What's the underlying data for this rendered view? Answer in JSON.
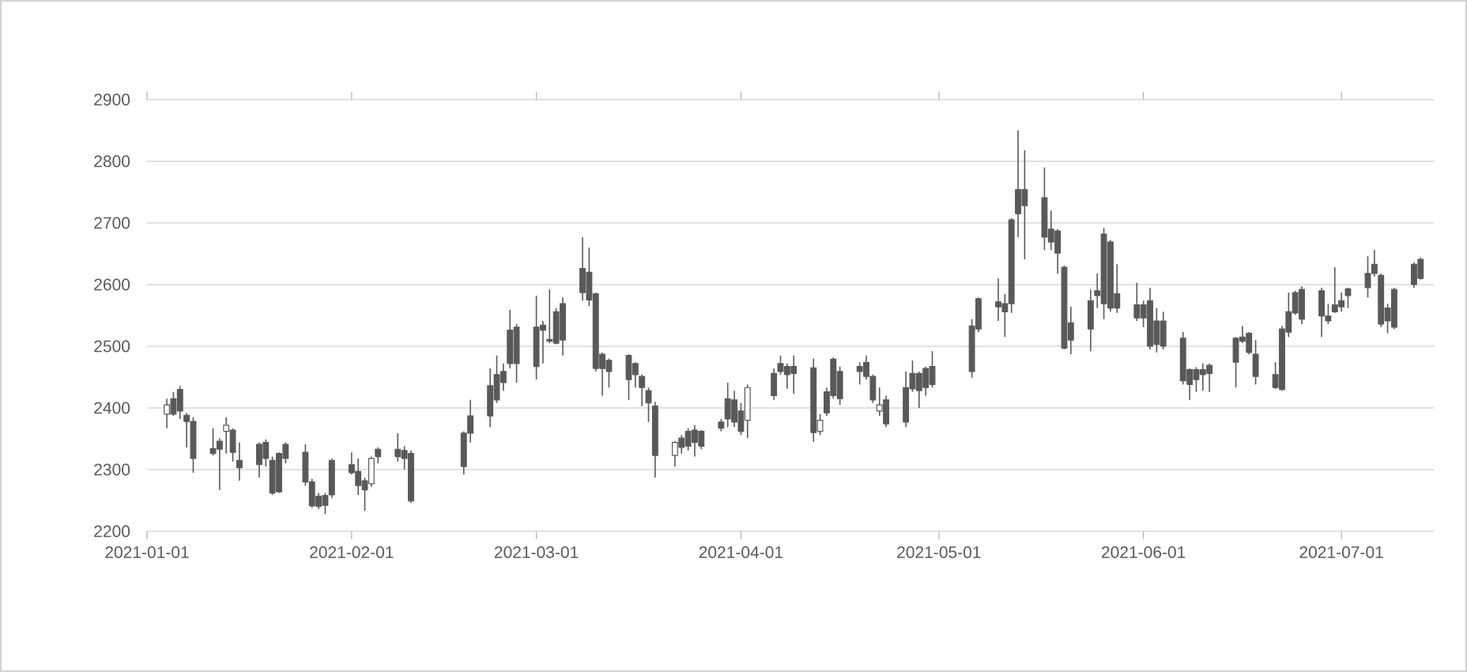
{
  "chart_data": {
    "type": "candlestick",
    "color": "#595959",
    "xlim": [
      "2021-01-01",
      "2021-07-15"
    ],
    "xticks": [
      "2021-01-01",
      "2021-02-01",
      "2021-03-01",
      "2021-04-01",
      "2021-05-01",
      "2021-06-01",
      "2021-07-01"
    ],
    "ylim": [
      2200,
      2900
    ],
    "yticks": [
      2200,
      2300,
      2400,
      2500,
      2600,
      2700,
      2800,
      2900
    ],
    "grid": "y",
    "x": [
      "2021-01-04",
      "2021-01-05",
      "2021-01-06",
      "2021-01-07",
      "2021-01-08",
      "2021-01-11",
      "2021-01-12",
      "2021-01-13",
      "2021-01-14",
      "2021-01-15",
      "2021-01-18",
      "2021-01-19",
      "2021-01-20",
      "2021-01-21",
      "2021-01-22",
      "2021-01-25",
      "2021-01-26",
      "2021-01-27",
      "2021-01-28",
      "2021-01-29",
      "2021-02-01",
      "2021-02-02",
      "2021-02-03",
      "2021-02-04",
      "2021-02-05",
      "2021-02-08",
      "2021-02-09",
      "2021-02-10",
      "2021-02-18",
      "2021-02-19",
      "2021-02-22",
      "2021-02-23",
      "2021-02-24",
      "2021-02-25",
      "2021-02-26",
      "2021-03-01",
      "2021-03-02",
      "2021-03-03",
      "2021-03-04",
      "2021-03-05",
      "2021-03-08",
      "2021-03-09",
      "2021-03-10",
      "2021-03-11",
      "2021-03-12",
      "2021-03-15",
      "2021-03-16",
      "2021-03-17",
      "2021-03-18",
      "2021-03-19",
      "2021-03-22",
      "2021-03-23",
      "2021-03-24",
      "2021-03-25",
      "2021-03-26",
      "2021-03-29",
      "2021-03-30",
      "2021-03-31",
      "2021-04-01",
      "2021-04-02",
      "2021-04-06",
      "2021-04-07",
      "2021-04-08",
      "2021-04-09",
      "2021-04-12",
      "2021-04-13",
      "2021-04-14",
      "2021-04-15",
      "2021-04-16",
      "2021-04-19",
      "2021-04-20",
      "2021-04-21",
      "2021-04-22",
      "2021-04-23",
      "2021-04-26",
      "2021-04-27",
      "2021-04-28",
      "2021-04-29",
      "2021-04-30",
      "2021-05-06",
      "2021-05-07",
      "2021-05-10",
      "2021-05-11",
      "2021-05-12",
      "2021-05-13",
      "2021-05-14",
      "2021-05-17",
      "2021-05-18",
      "2021-05-19",
      "2021-05-20",
      "2021-05-21",
      "2021-05-24",
      "2021-05-25",
      "2021-05-26",
      "2021-05-27",
      "2021-05-28",
      "2021-05-31",
      "2021-06-01",
      "2021-06-02",
      "2021-06-03",
      "2021-06-04",
      "2021-06-07",
      "2021-06-08",
      "2021-06-09",
      "2021-06-10",
      "2021-06-11",
      "2021-06-15",
      "2021-06-16",
      "2021-06-17",
      "2021-06-18",
      "2021-06-21",
      "2021-06-22",
      "2021-06-23",
      "2021-06-24",
      "2021-06-25",
      "2021-06-28",
      "2021-06-29",
      "2021-06-30",
      "2021-07-01",
      "2021-07-02",
      "2021-07-05",
      "2021-07-06",
      "2021-07-07",
      "2021-07-08",
      "2021-07-09",
      "2021-07-12",
      "2021-07-13"
    ],
    "ohlc": [
      [
        2390,
        2415,
        2367,
        2405
      ],
      [
        2415,
        2426,
        2387,
        2390
      ],
      [
        2430,
        2436,
        2382,
        2395
      ],
      [
        2388,
        2392,
        2336,
        2378
      ],
      [
        2378,
        2385,
        2295,
        2318
      ],
      [
        2334,
        2367,
        2323,
        2326
      ],
      [
        2346,
        2351,
        2267,
        2333
      ],
      [
        2362,
        2385,
        2326,
        2372
      ],
      [
        2364,
        2367,
        2313,
        2328
      ],
      [
        2315,
        2344,
        2282,
        2303
      ],
      [
        2341,
        2344,
        2287,
        2308
      ],
      [
        2344,
        2349,
        2305,
        2318
      ],
      [
        2315,
        2321,
        2259,
        2262
      ],
      [
        2326,
        2328,
        2262,
        2264
      ],
      [
        2341,
        2344,
        2310,
        2318
      ],
      [
        2328,
        2341,
        2274,
        2280
      ],
      [
        2280,
        2285,
        2238,
        2241
      ],
      [
        2257,
        2262,
        2236,
        2240
      ],
      [
        2258,
        2262,
        2228,
        2242
      ],
      [
        2315,
        2318,
        2254,
        2259
      ],
      [
        2308,
        2328,
        2292,
        2295
      ],
      [
        2297,
        2318,
        2259,
        2274
      ],
      [
        2282,
        2287,
        2233,
        2267
      ],
      [
        2277,
        2321,
        2272,
        2318
      ],
      [
        2333,
        2336,
        2310,
        2321
      ],
      [
        2333,
        2359,
        2313,
        2321
      ],
      [
        2331,
        2338,
        2300,
        2318
      ],
      [
        2326,
        2331,
        2246,
        2249
      ],
      [
        2359,
        2362,
        2292,
        2305
      ],
      [
        2387,
        2413,
        2344,
        2359
      ],
      [
        2436,
        2464,
        2369,
        2387
      ],
      [
        2454,
        2485,
        2408,
        2413
      ],
      [
        2459,
        2472,
        2428,
        2441
      ],
      [
        2526,
        2559,
        2464,
        2472
      ],
      [
        2531,
        2536,
        2441,
        2472
      ],
      [
        2531,
        2582,
        2446,
        2467
      ],
      [
        2534,
        2541,
        2472,
        2526
      ],
      [
        2511,
        2592,
        2505,
        2508
      ],
      [
        2556,
        2562,
        2503,
        2505
      ],
      [
        2569,
        2579,
        2485,
        2510
      ],
      [
        2626,
        2677,
        2574,
        2587
      ],
      [
        2620,
        2660,
        2565,
        2575
      ],
      [
        2585,
        2587,
        2459,
        2464
      ],
      [
        2487,
        2490,
        2420,
        2464
      ],
      [
        2477,
        2480,
        2433,
        2459
      ],
      [
        2485,
        2487,
        2413,
        2446
      ],
      [
        2472,
        2474,
        2433,
        2454
      ],
      [
        2451,
        2454,
        2403,
        2433
      ],
      [
        2428,
        2433,
        2377,
        2408
      ],
      [
        2403,
        2410,
        2287,
        2323
      ],
      [
        2323,
        2346,
        2305,
        2344
      ],
      [
        2351,
        2356,
        2326,
        2336
      ],
      [
        2362,
        2367,
        2331,
        2338
      ],
      [
        2364,
        2372,
        2321,
        2344
      ],
      [
        2362,
        2364,
        2333,
        2338
      ],
      [
        2377,
        2382,
        2362,
        2367
      ],
      [
        2415,
        2441,
        2369,
        2382
      ],
      [
        2413,
        2428,
        2369,
        2377
      ],
      [
        2395,
        2408,
        2356,
        2362
      ],
      [
        2380,
        2438,
        2351,
        2433
      ],
      [
        2456,
        2464,
        2413,
        2420
      ],
      [
        2472,
        2485,
        2454,
        2459
      ],
      [
        2467,
        2472,
        2431,
        2454
      ],
      [
        2467,
        2485,
        2423,
        2456
      ],
      [
        2465,
        2480,
        2345,
        2360
      ],
      [
        2362,
        2390,
        2356,
        2380
      ],
      [
        2426,
        2433,
        2387,
        2392
      ],
      [
        2479,
        2482,
        2415,
        2420
      ],
      [
        2459,
        2467,
        2405,
        2415
      ],
      [
        2467,
        2474,
        2438,
        2459
      ],
      [
        2474,
        2485,
        2446,
        2451
      ],
      [
        2451,
        2454,
        2408,
        2413
      ],
      [
        2395,
        2433,
        2387,
        2405
      ],
      [
        2413,
        2420,
        2369,
        2374
      ],
      [
        2433,
        2459,
        2369,
        2377
      ],
      [
        2456,
        2477,
        2426,
        2431
      ],
      [
        2456,
        2459,
        2400,
        2428
      ],
      [
        2464,
        2467,
        2420,
        2433
      ],
      [
        2467,
        2492,
        2433,
        2438
      ],
      [
        2533,
        2544,
        2449,
        2459
      ],
      [
        2577,
        2579,
        2523,
        2528
      ],
      [
        2572,
        2610,
        2541,
        2564
      ],
      [
        2569,
        2585,
        2515,
        2556
      ],
      [
        2705,
        2708,
        2554,
        2569
      ],
      [
        2754,
        2850,
        2677,
        2715
      ],
      [
        2754,
        2818,
        2641,
        2728
      ],
      [
        2741,
        2790,
        2656,
        2677
      ],
      [
        2690,
        2720,
        2656,
        2669
      ],
      [
        2687,
        2690,
        2618,
        2651
      ],
      [
        2628,
        2631,
        2495,
        2497
      ],
      [
        2538,
        2564,
        2487,
        2510
      ],
      [
        2574,
        2592,
        2492,
        2528
      ],
      [
        2590,
        2618,
        2562,
        2582
      ],
      [
        2682,
        2692,
        2544,
        2569
      ],
      [
        2669,
        2672,
        2556,
        2562
      ],
      [
        2585,
        2633,
        2554,
        2562
      ],
      [
        2567,
        2603,
        2541,
        2546
      ],
      [
        2567,
        2574,
        2531,
        2546
      ],
      [
        2574,
        2595,
        2495,
        2500
      ],
      [
        2541,
        2562,
        2490,
        2503
      ],
      [
        2541,
        2556,
        2495,
        2500
      ],
      [
        2513,
        2523,
        2438,
        2444
      ],
      [
        2462,
        2464,
        2413,
        2438
      ],
      [
        2462,
        2466,
        2426,
        2446
      ],
      [
        2462,
        2472,
        2428,
        2454
      ],
      [
        2469,
        2472,
        2426,
        2456
      ],
      [
        2513,
        2515,
        2433,
        2474
      ],
      [
        2515,
        2533,
        2505,
        2508
      ],
      [
        2521,
        2523,
        2487,
        2490
      ],
      [
        2487,
        2510,
        2438,
        2451
      ],
      [
        2454,
        2474,
        2431,
        2433
      ],
      [
        2528,
        2533,
        2428,
        2430
      ],
      [
        2556,
        2587,
        2515,
        2523
      ],
      [
        2587,
        2590,
        2551,
        2554
      ],
      [
        2592,
        2597,
        2536,
        2544
      ],
      [
        2590,
        2595,
        2515,
        2549
      ],
      [
        2549,
        2569,
        2536,
        2541
      ],
      [
        2567,
        2628,
        2554,
        2556
      ],
      [
        2574,
        2587,
        2556,
        2564
      ],
      [
        2593,
        2595,
        2562,
        2582
      ],
      [
        2618,
        2646,
        2579,
        2595
      ],
      [
        2633,
        2656,
        2613,
        2618
      ],
      [
        2615,
        2618,
        2531,
        2536
      ],
      [
        2562,
        2569,
        2521,
        2541
      ],
      [
        2592,
        2595,
        2528,
        2531
      ],
      [
        2633,
        2636,
        2595,
        2600
      ],
      [
        2641,
        2644,
        2608,
        2610
      ]
    ]
  }
}
